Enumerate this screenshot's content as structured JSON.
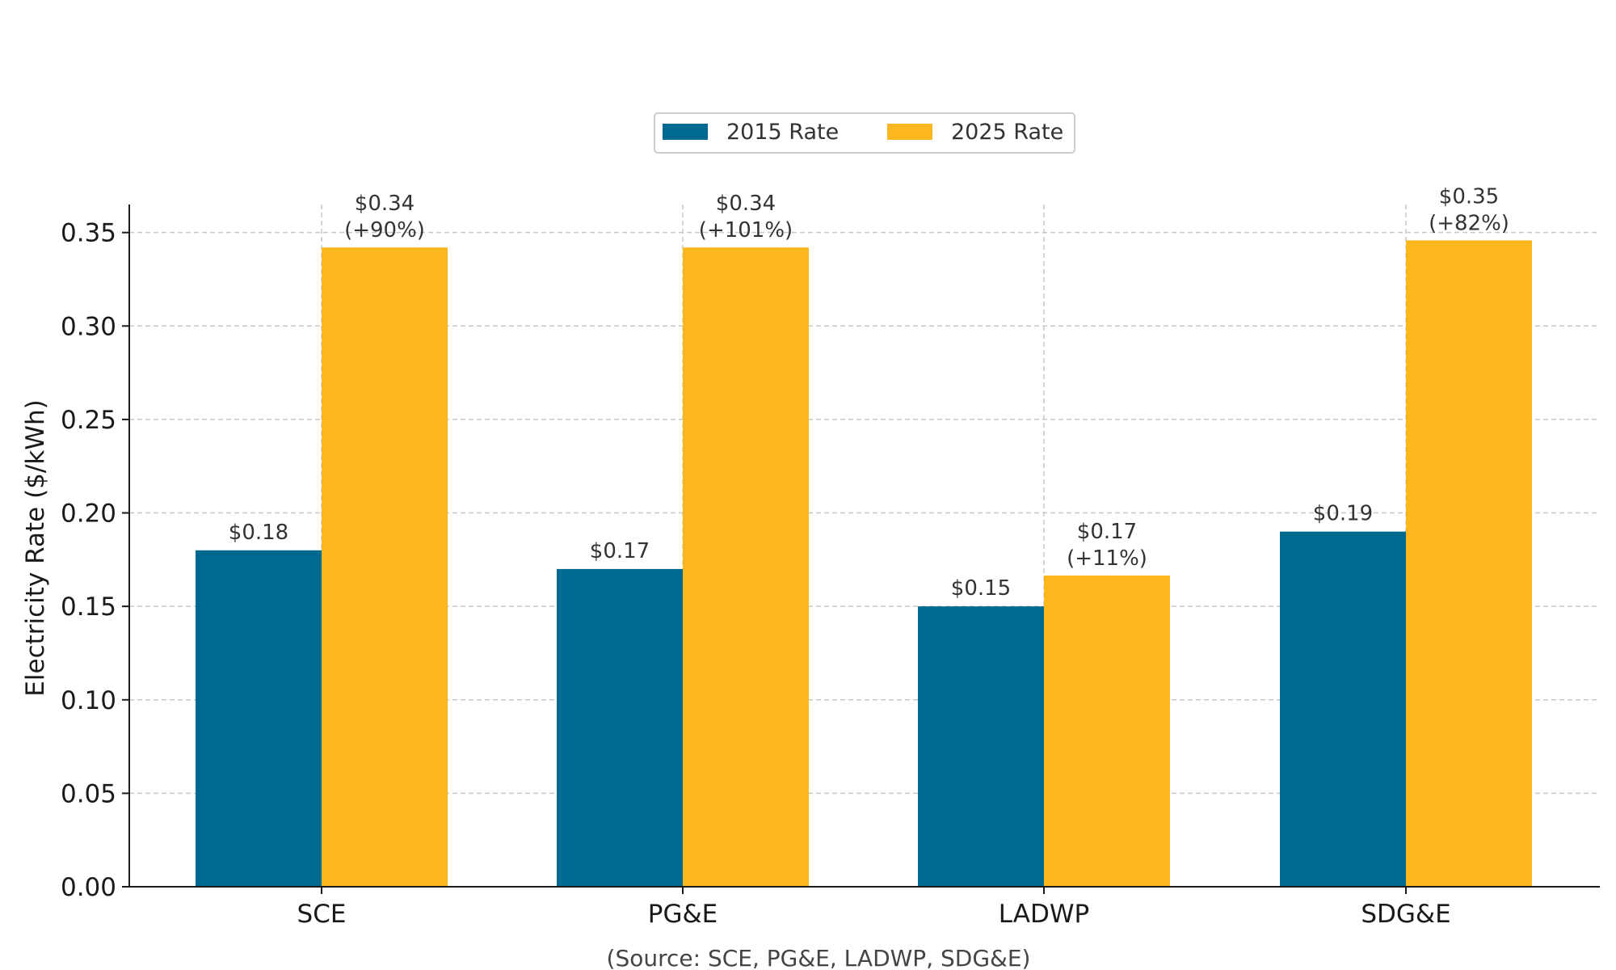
{
  "chart_data": {
    "type": "bar",
    "categories": [
      "SCE",
      "PG&E",
      "LADWP",
      "SDG&E"
    ],
    "series": [
      {
        "name": "2015 Rate",
        "color": "#006990",
        "values": [
          0.18,
          0.17,
          0.15,
          0.19
        ],
        "labels": [
          "$0.18",
          "$0.17",
          "$0.15",
          "$0.19"
        ]
      },
      {
        "name": "2025 Rate",
        "color": "#FDB71E",
        "values": [
          0.342,
          0.342,
          0.1665,
          0.3458
        ],
        "labels": [
          "$0.34",
          "$0.34",
          "$0.17",
          "$0.35"
        ],
        "pct_labels": [
          "(+90%)",
          "(+101%)",
          "(+11%)",
          "(+82%)"
        ]
      }
    ],
    "ylabel": "Electricity Rate ($/kWh)",
    "ylim": [
      0,
      0.365
    ],
    "yticks": [
      "0.00",
      "0.05",
      "0.10",
      "0.15",
      "0.20",
      "0.25",
      "0.30",
      "0.35"
    ],
    "grid": true,
    "legend_position": "top-center",
    "source_note": "(Source: SCE, PG&E, LADWP, SDG&E)"
  }
}
